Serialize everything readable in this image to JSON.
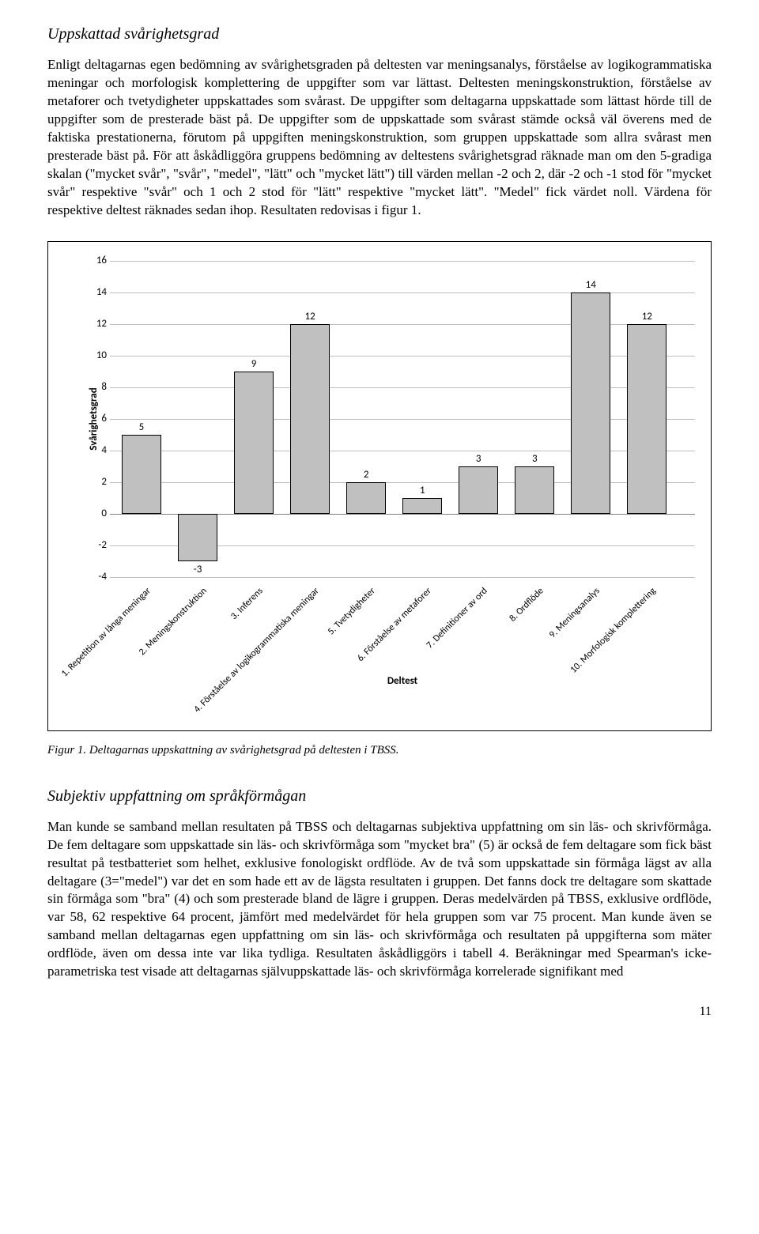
{
  "heading1": "Uppskattad svårighetsgrad",
  "para1": "Enligt deltagarnas egen bedömning av svårighetsgraden på deltesten var meningsanalys, förståelse av logikogrammatiska meningar och morfologisk komplettering de uppgifter som var lättast. Deltesten meningskonstruktion, förståelse av metaforer och tvetydigheter uppskattades som svårast. De uppgifter som deltagarna uppskattade som lättast hörde till de uppgifter som de presterade bäst på. De uppgifter som de uppskattade som svårast stämde också väl överens med de faktiska prestationerna, förutom på uppgiften meningskonstruktion, som gruppen uppskattade som allra svårast men presterade bäst på. För att åskådliggöra gruppens bedömning av deltestens svårighetsgrad räknade man om den 5-gradiga skalan (\"mycket svår\", \"svår\", \"medel\", \"lätt\" och \"mycket lätt\") till värden mellan -2 och 2, där -2 och -1 stod för \"mycket svår\" respektive \"svår\" och 1 och 2 stod för \"lätt\" respektive \"mycket lätt\". \"Medel\" fick värdet noll.  Värdena för respektive deltest räknades sedan ihop. Resultaten redovisas i figur 1.",
  "chart": {
    "type": "bar",
    "ylabel": "Svårighetsgrad",
    "xlabel": "Deltest",
    "ymin": -4,
    "ymax": 16,
    "ystep": 2,
    "bar_color": "#c0c0c0",
    "bar_border": "#000000",
    "grid_color": "#bfbfbf",
    "background": "#ffffff",
    "categories": [
      "1. Repetition av långa meningar",
      "2. Meningskonstruktion",
      "3. Inferens",
      "4. Förståelse av logikogrammatiska meningar",
      "5. Tvetydigheter",
      "6. Förståelse av metaforer",
      "7. Definitioner av ord",
      "8. Ordflöde",
      "9. Meningsanalys",
      "10. Morfologisk komplettering"
    ],
    "values": [
      5,
      -3,
      9,
      12,
      2,
      1,
      3,
      3,
      14,
      12
    ],
    "bar_width_pct": 6.8,
    "gap_pct": 2.8,
    "left_pad_pct": 2.0,
    "label_fontsize": 13,
    "tick_fontsize": 13,
    "xtick_fontsize": 12
  },
  "figcaption": "Figur 1. Deltagarnas uppskattning av svårighetsgrad på deltesten i TBSS.",
  "heading2": "Subjektiv uppfattning om språkförmågan",
  "para2": "Man kunde se samband mellan resultaten på TBSS och deltagarnas subjektiva uppfattning om sin läs- och skrivförmåga. De fem deltagare som uppskattade sin läs- och skrivförmåga som \"mycket bra\" (5) är också de fem deltagare som fick bäst resultat på testbatteriet som helhet, exklusive fonologiskt ordflöde. Av de två som uppskattade sin förmåga lägst av alla deltagare (3=\"medel\") var det en som hade ett av de lägsta resultaten i gruppen. Det fanns dock tre deltagare som skattade sin förmåga som \"bra\" (4) och som presterade bland de lägre i gruppen. Deras medelvärden på TBSS, exklusive ordflöde, var 58, 62 respektive 64 procent, jämfört med medelvärdet för hela gruppen som var 75 procent. Man kunde även se samband mellan deltagarnas egen uppfattning om sin läs- och skrivförmåga och resultaten på uppgifterna som mäter ordflöde, även om dessa inte var lika tydliga. Resultaten åskådliggörs i tabell 4. Beräkningar med Spearman's icke-parametriska test visade att deltagarnas självuppskattade läs- och skrivförmåga korrelerade signifikant med",
  "pagenum": "11"
}
